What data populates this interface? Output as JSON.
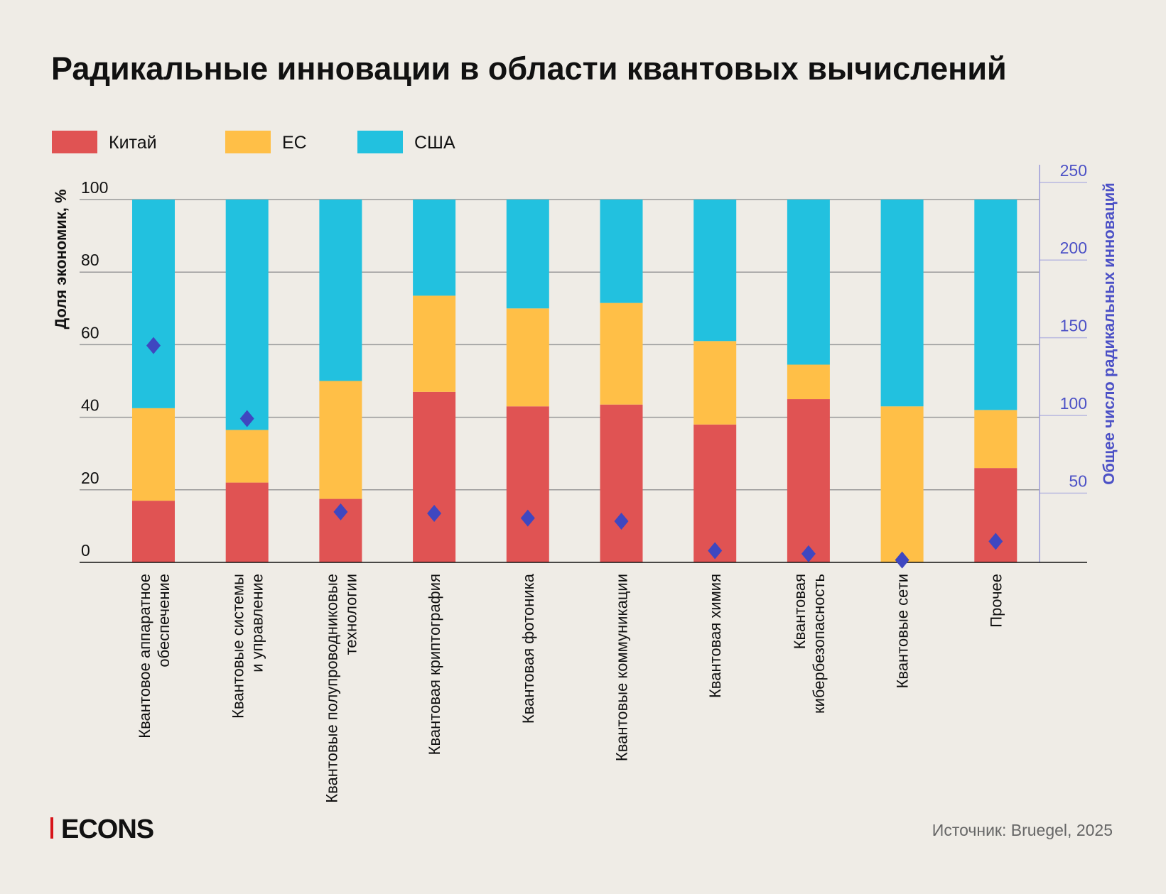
{
  "title": "Радикальные инновации в области квантовых вычислений",
  "source": "Источник: Bruegel, 2025",
  "logo": "ECONS",
  "colors": {
    "china": "#e05353",
    "eu": "#ffbf47",
    "usa": "#22c1df",
    "total": "#3f47c0",
    "background": "#efece6",
    "logo_accent": "#d7141a"
  },
  "chart_data": {
    "type": "bar",
    "stacked": true,
    "title": "Радикальные инновации в области квантовых вычислений",
    "ylabel": "Доля экономик, %",
    "y2label": "Общее число радикальных инноваций",
    "ylim": [
      0,
      100
    ],
    "y2lim": [
      0,
      250
    ],
    "yticks": [
      0,
      20,
      40,
      60,
      80,
      100
    ],
    "y2ticks": [
      50,
      100,
      150,
      200,
      250
    ],
    "grid": true,
    "legend": "top-left",
    "categories": [
      [
        "Квантовое аппаратное",
        "обеспечение"
      ],
      [
        "Квантовые системы",
        "и управление"
      ],
      [
        "Квантовые полупроводниковые",
        "технологии"
      ],
      [
        "Квантовая криптография"
      ],
      [
        "Квантовая фотоника"
      ],
      [
        "Квантовые коммуникации"
      ],
      [
        "Квантовая химия"
      ],
      [
        "Квантовая",
        "кибербезопасность"
      ],
      [
        "Квантовые сети"
      ],
      [
        "Прочее"
      ]
    ],
    "series": [
      {
        "name": "Китай",
        "values": [
          17,
          22,
          17.5,
          47,
          43,
          43.5,
          38,
          45,
          0,
          26
        ]
      },
      {
        "name": "ЕС",
        "values": [
          25.5,
          14.5,
          32.5,
          26.5,
          27,
          28,
          23,
          9.5,
          43,
          16
        ]
      },
      {
        "name": "США",
        "values": [
          57.5,
          63.5,
          50,
          26.5,
          30,
          28.5,
          39,
          45.5,
          57,
          58
        ]
      }
    ],
    "total_marker": {
      "axis": "right",
      "values": [
        145,
        98,
        38,
        37,
        34,
        32,
        13,
        11,
        7,
        19
      ]
    }
  }
}
